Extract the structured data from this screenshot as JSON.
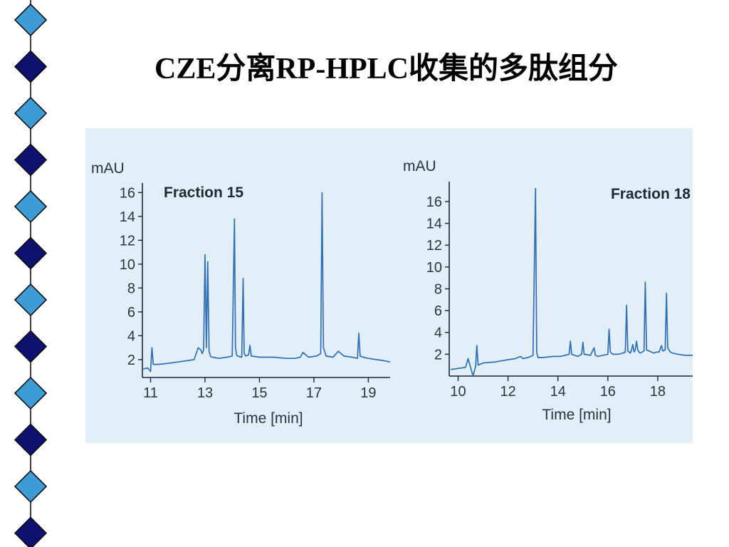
{
  "slide": {
    "title": "CZE分离RP-HPLC收集的多肽组分",
    "panel_bg": "#e2eff6",
    "trace_color": "#2e6fb8",
    "diamond_colors": [
      "#3d9bd6",
      "#0d1270"
    ]
  },
  "chart_data": [
    {
      "type": "line",
      "title": "Fraction 15",
      "ylabel": "mAU",
      "xlabel": "Time [min]",
      "xlim": [
        10.7,
        19.8
      ],
      "ylim": [
        0.5,
        16.5
      ],
      "xticks": [
        11,
        13,
        15,
        17,
        19
      ],
      "yticks": [
        2,
        4,
        6,
        8,
        10,
        12,
        14,
        16
      ],
      "grid": false,
      "series": [
        {
          "x": [
            10.7,
            10.9,
            11.0,
            11.05,
            11.1,
            11.3,
            11.7,
            12.0,
            12.3,
            12.6,
            12.75,
            12.85,
            12.9,
            12.95,
            13.0,
            13.05,
            13.1,
            13.15,
            13.2,
            13.25,
            13.3,
            13.5,
            13.8,
            14.0,
            14.08,
            14.12,
            14.16,
            14.2,
            14.35,
            14.4,
            14.44,
            14.5,
            14.6,
            14.65,
            14.7,
            15.0,
            15.5,
            16.0,
            16.3,
            16.5,
            16.6,
            16.8,
            17.1,
            17.25,
            17.3,
            17.35,
            17.45,
            17.7,
            17.9,
            18.1,
            18.4,
            18.6,
            18.65,
            18.7,
            18.8,
            19.0,
            19.3,
            19.6,
            19.8
          ],
          "y": [
            1.2,
            1.3,
            1.0,
            3.0,
            1.6,
            1.6,
            1.7,
            1.8,
            1.9,
            2.0,
            3.0,
            2.8,
            2.5,
            2.8,
            10.8,
            3.0,
            10.2,
            2.7,
            2.3,
            2.2,
            2.2,
            2.1,
            2.2,
            2.3,
            13.8,
            3.0,
            2.4,
            2.3,
            2.2,
            8.8,
            2.5,
            2.3,
            2.4,
            3.2,
            2.3,
            2.2,
            2.2,
            2.1,
            2.1,
            2.2,
            2.6,
            2.2,
            2.3,
            2.5,
            16.0,
            3.0,
            2.3,
            2.2,
            2.7,
            2.3,
            2.2,
            2.1,
            4.2,
            2.3,
            2.2,
            2.1,
            2.0,
            1.9,
            1.8
          ]
        }
      ]
    },
    {
      "type": "line",
      "title": "Fraction 18",
      "ylabel": "mAU",
      "xlabel": "Time [min]",
      "xlim": [
        9.7,
        19.4
      ],
      "ylim": [
        0.0,
        17.5
      ],
      "xticks": [
        10,
        12,
        14,
        16,
        18
      ],
      "yticks": [
        2,
        4,
        6,
        8,
        10,
        12,
        14,
        16
      ],
      "grid": false,
      "series": [
        {
          "x": [
            9.7,
            10.0,
            10.3,
            10.4,
            10.5,
            10.6,
            10.7,
            10.75,
            10.8,
            11.0,
            11.5,
            12.0,
            12.3,
            12.5,
            12.6,
            12.8,
            13.0,
            13.1,
            13.15,
            13.2,
            13.4,
            13.8,
            14.1,
            14.45,
            14.5,
            14.55,
            14.8,
            14.95,
            15.0,
            15.05,
            15.3,
            15.45,
            15.5,
            15.6,
            15.8,
            16.0,
            16.05,
            16.1,
            16.2,
            16.4,
            16.6,
            16.7,
            16.75,
            16.8,
            16.9,
            16.95,
            17.0,
            17.05,
            17.1,
            17.15,
            17.2,
            17.25,
            17.3,
            17.45,
            17.5,
            17.55,
            17.65,
            17.75,
            17.85,
            17.95,
            18.05,
            18.15,
            18.2,
            18.3,
            18.35,
            18.4,
            18.5,
            18.6,
            18.8,
            19.1,
            19.4
          ],
          "y": [
            0.6,
            0.7,
            0.8,
            1.6,
            0.8,
            0.0,
            0.9,
            2.8,
            1.0,
            1.2,
            1.3,
            1.5,
            1.6,
            1.8,
            1.6,
            1.7,
            1.9,
            17.2,
            2.2,
            1.7,
            1.7,
            1.8,
            1.8,
            2.0,
            3.2,
            2.0,
            1.8,
            2.0,
            3.1,
            2.0,
            1.9,
            2.6,
            1.9,
            1.8,
            1.9,
            2.0,
            4.3,
            2.2,
            2.0,
            2.0,
            2.1,
            2.2,
            6.5,
            2.3,
            2.1,
            2.4,
            2.9,
            2.2,
            2.4,
            3.2,
            2.4,
            2.2,
            2.1,
            2.3,
            8.6,
            2.4,
            2.3,
            2.2,
            2.1,
            2.2,
            2.2,
            2.8,
            2.3,
            2.4,
            7.6,
            2.6,
            2.2,
            2.1,
            2.0,
            1.9,
            1.9
          ]
        }
      ]
    }
  ]
}
